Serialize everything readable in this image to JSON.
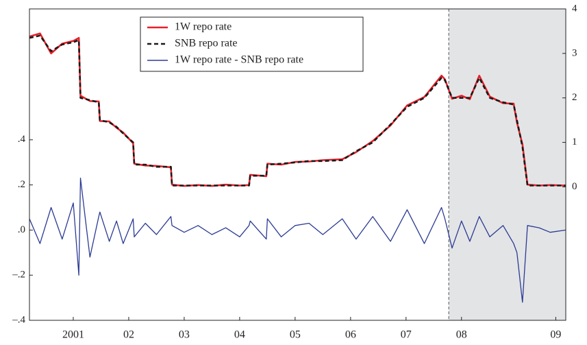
{
  "chart_data": {
    "type": "line",
    "x": [
      2000.21,
      2000.4,
      2000.6,
      2000.8,
      2001.0,
      2001.1,
      2001.13,
      2001.3,
      2001.46,
      2001.48,
      2001.65,
      2001.78,
      2001.9,
      2002.08,
      2002.1,
      2002.3,
      2002.5,
      2002.76,
      2002.78,
      2003.0,
      2003.25,
      2003.5,
      2003.75,
      2004.0,
      2004.17,
      2004.19,
      2004.48,
      2004.5,
      2004.75,
      2005.0,
      2005.25,
      2005.5,
      2005.85,
      2006.1,
      2006.4,
      2006.72,
      2007.02,
      2007.33,
      2007.64,
      2007.7,
      2007.83,
      2008.0,
      2008.15,
      2008.32,
      2008.51,
      2008.75,
      2008.94,
      2009.0,
      2009.1,
      2009.19,
      2009.4,
      2009.6,
      2009.88
    ],
    "series": [
      {
        "name": "1W repo rate",
        "color": "#e8202a",
        "axis": "y2",
        "style": "solid",
        "values": [
          3.38,
          3.45,
          3.0,
          3.22,
          3.28,
          3.35,
          2.05,
          1.93,
          1.92,
          1.48,
          1.47,
          1.33,
          1.22,
          0.98,
          0.52,
          0.48,
          0.47,
          0.44,
          0.05,
          0.02,
          0.04,
          0.02,
          0.05,
          0.03,
          0.04,
          0.27,
          0.24,
          0.52,
          0.5,
          0.56,
          0.57,
          0.6,
          0.62,
          0.78,
          1.03,
          1.38,
          1.83,
          2.02,
          2.5,
          2.42,
          1.98,
          2.05,
          1.97,
          2.5,
          2.03,
          1.88,
          1.87,
          1.45,
          0.95,
          0.05,
          0.03,
          0.04,
          0.03
        ]
      },
      {
        "name": "SNB repo rate",
        "color": "#1a1a1a",
        "axis": "y2",
        "style": "dashed",
        "values": [
          3.35,
          3.4,
          3.05,
          3.2,
          3.25,
          3.3,
          2.0,
          1.95,
          1.9,
          1.5,
          1.45,
          1.35,
          1.2,
          1.0,
          0.5,
          0.5,
          0.45,
          0.45,
          0.03,
          0.03,
          0.03,
          0.03,
          0.03,
          0.03,
          0.03,
          0.25,
          0.25,
          0.5,
          0.52,
          0.55,
          0.58,
          0.58,
          0.6,
          0.8,
          1.0,
          1.4,
          1.8,
          2.0,
          2.45,
          2.4,
          2.0,
          2.0,
          2.0,
          2.45,
          2.0,
          1.9,
          1.85,
          1.5,
          0.9,
          0.03,
          0.03,
          0.03,
          0.03
        ]
      },
      {
        "name": "1W repo rate - SNB repo rate",
        "color": "#2b3a93",
        "axis": "y",
        "style": "solid",
        "values": [
          0.05,
          -0.06,
          0.1,
          -0.04,
          0.12,
          -0.2,
          0.23,
          -0.12,
          0.06,
          0.08,
          -0.05,
          0.04,
          -0.06,
          0.05,
          -0.03,
          0.03,
          -0.02,
          0.06,
          0.02,
          -0.01,
          0.02,
          -0.02,
          0.01,
          -0.03,
          0.02,
          0.04,
          -0.04,
          0.05,
          -0.03,
          0.02,
          0.03,
          -0.02,
          0.05,
          -0.04,
          0.06,
          -0.05,
          0.09,
          -0.06,
          0.1,
          0.05,
          -0.08,
          0.04,
          -0.05,
          0.06,
          -0.03,
          0.02,
          -0.06,
          -0.1,
          -0.32,
          0.02,
          0.01,
          -0.01,
          0.0
        ]
      }
    ],
    "xlim": [
      2000.21,
      2009.88
    ],
    "xticks": [
      2001,
      {
        "value": 2002,
        "label": "02"
      },
      {
        "value": 2003,
        "label": "03"
      },
      {
        "value": 2004,
        "label": "04"
      },
      {
        "value": 2005,
        "label": "05"
      },
      {
        "value": 2006,
        "label": "06"
      },
      {
        "value": 2007,
        "label": "07"
      },
      {
        "value": 2008,
        "label": "08"
      },
      {
        "value": 2009.7,
        "label": "09"
      }
    ],
    "ylim": [
      -0.4,
      0.98
    ],
    "yticks": [
      {
        "value": -0.4,
        "label": "–.4"
      },
      {
        "value": -0.2,
        "label": "–.2"
      },
      {
        "value": 0,
        "label": ".0"
      },
      {
        "value": 0.2,
        "label": ".2"
      },
      {
        "value": 0.4,
        "label": ".4"
      }
    ],
    "y2lim": [
      -3,
      4
    ],
    "y2ticks": [
      0,
      1,
      2,
      3,
      4
    ],
    "shaded_from": 2007.77,
    "shade_color": "#e3e4e6",
    "legend": "upper left"
  }
}
